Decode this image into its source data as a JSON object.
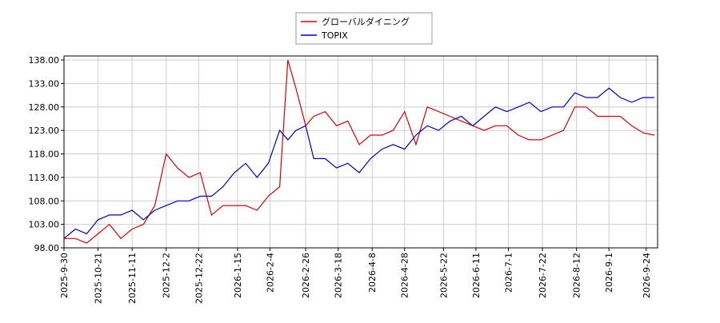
{
  "chart_data": {
    "type": "line",
    "x": [
      "2025-9-30",
      "2025-10-7",
      "2025-10-14",
      "2025-10-21",
      "2025-10-28",
      "2025-11-4",
      "2025-11-11",
      "2025-11-18",
      "2025-11-25",
      "2025-12-2",
      "2025-12-9",
      "2025-12-16",
      "2025-12-23",
      "2025-12-30",
      "2026-1-6",
      "2026-1-13",
      "2026-1-20",
      "2026-1-27",
      "2026-2-3",
      "2026-2-10",
      "2026-2-15",
      "2026-2-20",
      "2026-2-26",
      "2026-3-3",
      "2026-3-10",
      "2026-3-17",
      "2026-3-24",
      "2026-3-31",
      "2026-4-7",
      "2026-4-14",
      "2026-4-21",
      "2026-4-28",
      "2026-5-5",
      "2026-5-12",
      "2026-5-19",
      "2026-5-26",
      "2026-6-2",
      "2026-6-9",
      "2026-6-16",
      "2026-6-23",
      "2026-6-30",
      "2026-7-7",
      "2026-7-14",
      "2026-7-21",
      "2026-7-28",
      "2026-8-4",
      "2026-8-11",
      "2026-8-18",
      "2026-8-25",
      "2026-9-1",
      "2026-9-8",
      "2026-9-15",
      "2026-9-22",
      "2026-9-29"
    ],
    "series": [
      {
        "name": "グローバルダイニング",
        "color": "#dd0000",
        "values": [
          100,
          100,
          99,
          101,
          103,
          100,
          102,
          103,
          107,
          118,
          115,
          113,
          114,
          105,
          107,
          107,
          107,
          106,
          109,
          111,
          138,
          132,
          124,
          126,
          127,
          124,
          125,
          120,
          122,
          122,
          123,
          127,
          120,
          128,
          127,
          126,
          125,
          124,
          123,
          124,
          124,
          122,
          121,
          121,
          122,
          123,
          128,
          128,
          126,
          126,
          126,
          124,
          122.5,
          122
        ]
      },
      {
        "name": "TOPIX",
        "color": "#0000cc",
        "values": [
          100,
          102,
          101,
          104,
          105,
          105,
          106,
          104,
          106,
          107,
          108,
          108,
          109,
          109,
          111,
          114,
          116,
          113,
          116,
          123,
          121,
          123,
          124,
          117,
          117,
          115,
          116,
          114,
          117,
          119,
          120,
          119,
          122,
          124,
          123,
          125,
          126,
          124,
          126,
          128,
          127,
          128,
          129,
          127,
          128,
          128,
          131,
          130,
          130,
          132,
          130,
          129,
          130,
          130
        ]
      }
    ],
    "xlim": [
      "2025-9-30",
      "2026-10-1"
    ],
    "xticks": [
      "2025-9-30",
      "2025-10-21",
      "2025-11-11",
      "2025-12-2",
      "2025-12-22",
      "2026-1-15",
      "2026-2-4",
      "2026-2-26",
      "2026-3-18",
      "2026-4-8",
      "2026-4-28",
      "2026-5-22",
      "2026-6-11",
      "2026-7-1",
      "2026-7-22",
      "2026-8-12",
      "2026-9-1",
      "2026-9-24"
    ],
    "ylim": [
      98,
      138
    ],
    "yticks": [
      {
        "value": 98,
        "label": "98.00"
      },
      {
        "value": 103,
        "label": "103.00"
      },
      {
        "value": 108,
        "label": "108.00"
      },
      {
        "value": 113,
        "label": "113.00"
      },
      {
        "value": 118,
        "label": "118.00"
      },
      {
        "value": 123,
        "label": "123.00"
      },
      {
        "value": 128,
        "label": "128.00"
      },
      {
        "value": 133,
        "label": "133.00"
      },
      {
        "value": 138,
        "label": "138.00"
      }
    ],
    "grid": true
  }
}
